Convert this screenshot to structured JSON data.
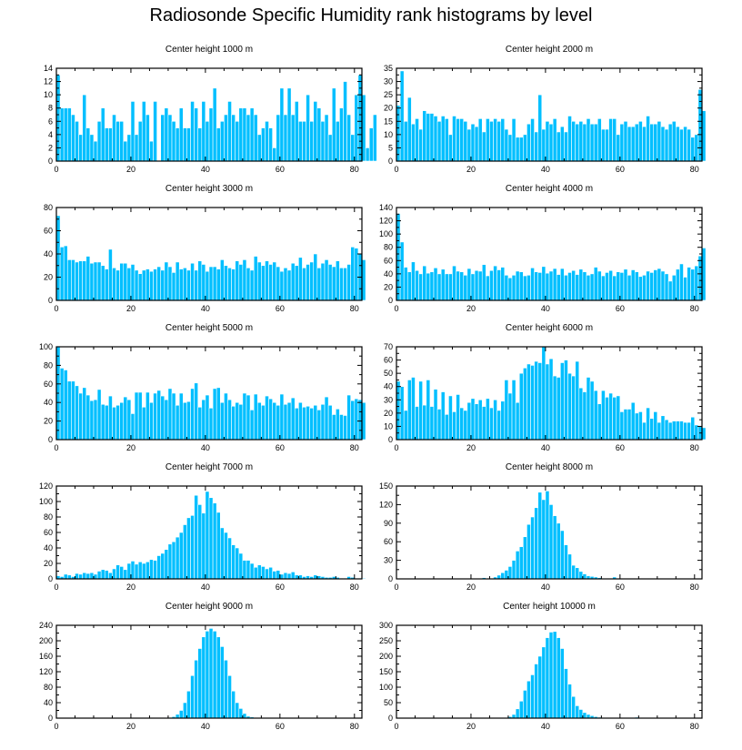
{
  "title": "Radiosonde Specific Humidity rank histograms by level",
  "colors": {
    "bar": "#00BFFF",
    "bar_edge": "#ffffff",
    "axis": "#000000"
  },
  "chart_data": [
    {
      "type": "bar",
      "title": "Center height 1000 m",
      "xlim": [
        0,
        82
      ],
      "ylim": [
        0,
        14
      ],
      "xticks": [
        0,
        20,
        40,
        60,
        80
      ],
      "yticks": [
        0,
        2,
        4,
        6,
        8,
        10,
        12,
        14
      ],
      "values": [
        13,
        8,
        8,
        8,
        7,
        6,
        4,
        10,
        5,
        4,
        3,
        6,
        8,
        5,
        5,
        7,
        6,
        6,
        3,
        4,
        9,
        4,
        6,
        9,
        7,
        3,
        9,
        0,
        7,
        8,
        7,
        6,
        5,
        8,
        5,
        5,
        9,
        8,
        5,
        9,
        6,
        8,
        11,
        5,
        6,
        7,
        9,
        7,
        6,
        8,
        8,
        7,
        8,
        7,
        4,
        5,
        6,
        5,
        2,
        7,
        11,
        7,
        11,
        7,
        9,
        6,
        6,
        10,
        6,
        9,
        8,
        6,
        7,
        4,
        11,
        6,
        8,
        12,
        7,
        4,
        10,
        13,
        10,
        2,
        5,
        7
      ]
    },
    {
      "type": "bar",
      "title": "Center height 2000 m",
      "xlim": [
        0,
        82
      ],
      "ylim": [
        0,
        35
      ],
      "xticks": [
        0,
        20,
        40,
        60,
        80
      ],
      "yticks": [
        0,
        5,
        10,
        15,
        20,
        25,
        30,
        35
      ],
      "values": [
        21,
        34,
        15,
        24,
        14,
        16,
        12,
        19,
        18,
        18,
        17,
        15,
        17,
        16,
        10,
        17,
        16,
        16,
        15,
        12,
        14,
        13,
        16,
        11,
        16,
        15,
        16,
        15,
        16,
        12,
        10,
        16,
        9,
        9,
        10,
        14,
        16,
        11,
        25,
        12,
        15,
        14,
        16,
        11,
        13,
        11,
        17,
        15,
        14,
        15,
        14,
        16,
        14,
        14,
        16,
        12,
        12,
        16,
        16,
        10,
        14,
        15,
        13,
        13,
        14,
        15,
        13,
        17,
        14,
        14,
        15,
        13,
        12,
        14,
        15,
        13,
        12,
        13,
        12,
        9,
        10,
        27,
        19
      ]
    },
    {
      "type": "bar",
      "title": "Center height 3000 m",
      "xlim": [
        0,
        82
      ],
      "ylim": [
        0,
        80
      ],
      "xticks": [
        0,
        20,
        40,
        60,
        80
      ],
      "yticks": [
        0,
        20,
        40,
        60,
        80
      ],
      "values": [
        73,
        46,
        47,
        35,
        35,
        33,
        34,
        34,
        38,
        32,
        33,
        33,
        30,
        27,
        44,
        28,
        26,
        32,
        32,
        28,
        31,
        26,
        23,
        26,
        27,
        25,
        27,
        29,
        26,
        33,
        29,
        24,
        33,
        27,
        28,
        26,
        32,
        26,
        34,
        31,
        25,
        29,
        29,
        27,
        35,
        30,
        28,
        27,
        34,
        31,
        35,
        28,
        26,
        38,
        33,
        30,
        34,
        31,
        33,
        29,
        25,
        28,
        26,
        32,
        30,
        37,
        28,
        31,
        33,
        40,
        28,
        32,
        35,
        31,
        29,
        34,
        28,
        28,
        31,
        46,
        45,
        40,
        35
      ]
    },
    {
      "type": "bar",
      "title": "Center height 4000 m",
      "xlim": [
        0,
        82
      ],
      "ylim": [
        0,
        140
      ],
      "xticks": [
        0,
        20,
        40,
        60,
        80
      ],
      "yticks": [
        0,
        20,
        40,
        60,
        80,
        100,
        120,
        140
      ],
      "values": [
        131,
        88,
        50,
        43,
        58,
        45,
        40,
        52,
        41,
        43,
        49,
        40,
        47,
        40,
        40,
        52,
        44,
        43,
        38,
        48,
        40,
        45,
        44,
        54,
        37,
        45,
        52,
        46,
        50,
        38,
        34,
        38,
        44,
        43,
        37,
        38,
        49,
        43,
        42,
        51,
        41,
        44,
        48,
        39,
        48,
        38,
        42,
        45,
        39,
        47,
        43,
        38,
        40,
        50,
        44,
        37,
        42,
        45,
        37,
        43,
        42,
        47,
        38,
        46,
        43,
        36,
        38,
        44,
        42,
        46,
        48,
        44,
        40,
        29,
        38,
        47,
        55,
        35,
        50,
        47,
        52,
        67,
        79
      ]
    },
    {
      "type": "bar",
      "title": "Center height 5000 m",
      "xlim": [
        0,
        82
      ],
      "ylim": [
        0,
        100
      ],
      "xticks": [
        0,
        20,
        40,
        60,
        80
      ],
      "yticks": [
        0,
        20,
        40,
        60,
        80,
        100
      ],
      "values": [
        100,
        77,
        75,
        63,
        63,
        58,
        50,
        56,
        48,
        42,
        43,
        54,
        38,
        37,
        47,
        35,
        37,
        40,
        46,
        43,
        28,
        51,
        51,
        35,
        51,
        40,
        50,
        53,
        47,
        43,
        55,
        50,
        37,
        50,
        40,
        41,
        55,
        61,
        35,
        43,
        48,
        34,
        55,
        56,
        40,
        50,
        43,
        36,
        40,
        38,
        50,
        48,
        32,
        49,
        40,
        37,
        47,
        44,
        40,
        37,
        49,
        38,
        40,
        45,
        34,
        40,
        35,
        36,
        34,
        37,
        32,
        38,
        46,
        37,
        27,
        33,
        27,
        26,
        48,
        42,
        44,
        43,
        40
      ]
    },
    {
      "type": "bar",
      "title": "Center height 6000 m",
      "xlim": [
        0,
        82
      ],
      "ylim": [
        0,
        70
      ],
      "xticks": [
        0,
        20,
        40,
        60,
        80
      ],
      "yticks": [
        0,
        10,
        20,
        30,
        40,
        50,
        60,
        70
      ],
      "values": [
        44,
        40,
        22,
        45,
        47,
        25,
        44,
        26,
        45,
        25,
        38,
        23,
        36,
        19,
        33,
        21,
        34,
        24,
        22,
        28,
        31,
        27,
        30,
        25,
        31,
        24,
        30,
        22,
        29,
        45,
        35,
        45,
        28,
        50,
        54,
        57,
        56,
        59,
        58,
        70,
        57,
        61,
        48,
        47,
        58,
        60,
        50,
        48,
        59,
        39,
        36,
        47,
        44,
        37,
        27,
        37,
        32,
        35,
        32,
        33,
        21,
        23,
        23,
        28,
        20,
        21,
        13,
        24,
        16,
        21,
        13,
        18,
        15,
        13,
        14,
        14,
        14,
        13,
        13,
        17,
        11,
        10,
        9
      ]
    },
    {
      "type": "bar",
      "title": "Center height 7000 m",
      "xlim": [
        0,
        82
      ],
      "ylim": [
        0,
        120
      ],
      "xticks": [
        0,
        20,
        40,
        60,
        80
      ],
      "yticks": [
        0,
        20,
        40,
        60,
        80,
        100,
        120
      ],
      "values": [
        4,
        3,
        6,
        5,
        3,
        7,
        6,
        8,
        7,
        8,
        6,
        10,
        12,
        11,
        8,
        13,
        18,
        16,
        12,
        20,
        23,
        19,
        22,
        20,
        22,
        25,
        24,
        30,
        33,
        38,
        45,
        48,
        54,
        60,
        70,
        79,
        82,
        108,
        96,
        85,
        113,
        105,
        98,
        86,
        66,
        60,
        53,
        44,
        40,
        33,
        24,
        24,
        20,
        15,
        18,
        16,
        13,
        15,
        10,
        11,
        6,
        8,
        7,
        9,
        5,
        5,
        3,
        4,
        3,
        5,
        4,
        3,
        2,
        2,
        3,
        2,
        1,
        1,
        3,
        2,
        1,
        1,
        1
      ]
    },
    {
      "type": "bar",
      "title": "Center height 8000 m",
      "xlim": [
        0,
        82
      ],
      "ylim": [
        0,
        150
      ],
      "xticks": [
        0,
        20,
        40,
        60,
        80
      ],
      "yticks": [
        0,
        30,
        60,
        90,
        120,
        150
      ],
      "values": [
        0,
        0,
        0,
        0,
        0,
        0,
        0,
        0,
        0,
        0,
        0,
        0,
        0,
        0,
        0,
        0,
        0,
        0,
        0,
        0,
        0,
        0,
        0,
        2,
        1,
        0,
        3,
        6,
        10,
        14,
        20,
        30,
        45,
        52,
        68,
        88,
        100,
        115,
        140,
        128,
        142,
        120,
        102,
        90,
        78,
        55,
        40,
        22,
        18,
        12,
        8,
        5,
        4,
        3,
        2,
        1,
        1,
        0,
        3,
        0,
        0,
        0,
        0,
        0,
        0,
        0,
        0,
        0,
        0,
        0,
        0,
        0,
        0,
        0,
        0,
        0,
        0,
        0,
        0,
        0,
        0,
        0,
        0
      ]
    },
    {
      "type": "bar",
      "title": "Center height 9000 m",
      "xlim": [
        0,
        82
      ],
      "ylim": [
        0,
        240
      ],
      "xticks": [
        0,
        20,
        40,
        60,
        80
      ],
      "yticks": [
        0,
        40,
        80,
        120,
        160,
        200,
        240
      ],
      "values": [
        0,
        0,
        0,
        0,
        0,
        0,
        0,
        0,
        0,
        0,
        0,
        0,
        0,
        0,
        0,
        0,
        0,
        0,
        0,
        0,
        0,
        0,
        0,
        0,
        0,
        0,
        0,
        0,
        0,
        0,
        2,
        4,
        10,
        20,
        40,
        70,
        110,
        150,
        180,
        210,
        225,
        232,
        225,
        210,
        185,
        150,
        110,
        70,
        40,
        25,
        12,
        5,
        3,
        1,
        1,
        0,
        0,
        0,
        0,
        0,
        0,
        0,
        0,
        0,
        0,
        0,
        0,
        0,
        0,
        0,
        0,
        0,
        0,
        0,
        0,
        0,
        0,
        0,
        0,
        0,
        0,
        0,
        0
      ]
    },
    {
      "type": "bar",
      "title": "Center height 10000 m",
      "xlim": [
        0,
        82
      ],
      "ylim": [
        0,
        300
      ],
      "xticks": [
        0,
        20,
        40,
        60,
        80
      ],
      "yticks": [
        0,
        50,
        100,
        150,
        200,
        250,
        300
      ],
      "values": [
        0,
        0,
        0,
        0,
        0,
        0,
        0,
        0,
        0,
        0,
        0,
        0,
        0,
        0,
        0,
        0,
        0,
        0,
        0,
        0,
        0,
        0,
        0,
        0,
        0,
        0,
        0,
        0,
        0,
        2,
        5,
        12,
        30,
        55,
        90,
        120,
        140,
        175,
        200,
        230,
        260,
        278,
        280,
        260,
        225,
        160,
        110,
        70,
        40,
        28,
        18,
        12,
        8,
        5,
        3,
        2,
        1,
        1,
        0,
        0,
        0,
        0,
        0,
        2,
        3,
        1,
        0,
        0,
        0,
        0,
        0,
        0,
        0,
        0,
        0,
        0,
        0,
        0,
        0,
        0,
        0,
        0,
        0
      ]
    }
  ]
}
